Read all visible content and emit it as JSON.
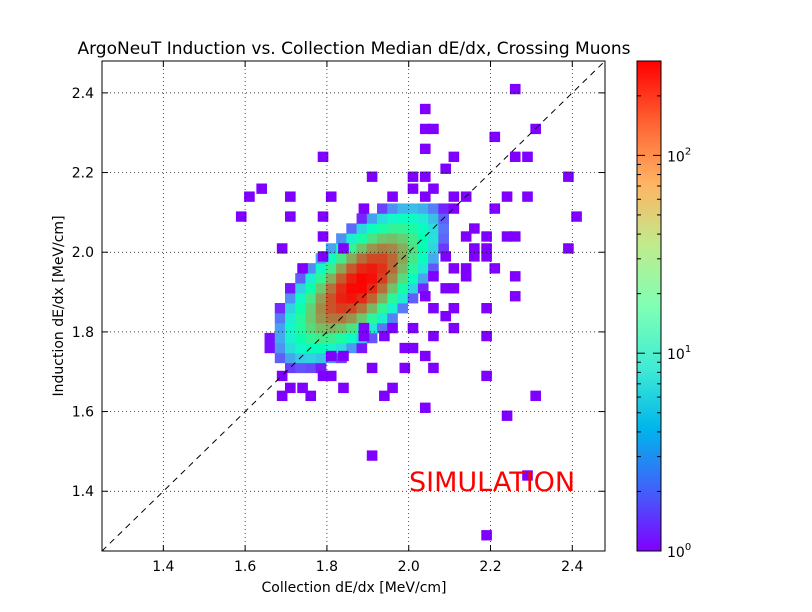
{
  "chart_data": {
    "type": "heatmap",
    "title": "ArgoNeuT Induction vs. Collection Median dE/dx, Crossing Muons",
    "xlabel": "Collection dE/dx [MeV/cm]",
    "ylabel": "Induction dE/dx [MeV/cm]",
    "annotation": "SIMULATION",
    "xlim": [
      1.25,
      2.48
    ],
    "ylim": [
      1.25,
      2.48
    ],
    "bin_width": 0.025,
    "x_ticks": [
      "1.4",
      "1.6",
      "1.8",
      "2.0",
      "2.2",
      "2.4"
    ],
    "x_tick_values": [
      1.4,
      1.6,
      1.8,
      2.0,
      2.2,
      2.4
    ],
    "y_ticks": [
      "1.4",
      "1.6",
      "1.8",
      "2.0",
      "2.2",
      "2.4"
    ],
    "y_tick_values": [
      1.4,
      1.6,
      1.8,
      2.0,
      2.2,
      2.4
    ],
    "grid": true,
    "diagonal_reference_line": "y = x (dashed)",
    "color_scale": "log, rainbow",
    "colorbar": {
      "min": 1,
      "max": 300,
      "ticks": [
        {
          "value": 1,
          "base": "10",
          "exp": "0"
        },
        {
          "value": 10,
          "base": "10",
          "exp": "1"
        },
        {
          "value": 100,
          "base": "10",
          "exp": "2"
        }
      ]
    },
    "sparse_points": [
      [
        2.26,
        2.41
      ],
      [
        2.04,
        2.36
      ],
      [
        2.04,
        2.31
      ],
      [
        2.06,
        2.31
      ],
      [
        2.31,
        2.31
      ],
      [
        2.21,
        2.29
      ],
      [
        2.04,
        2.26
      ],
      [
        1.79,
        2.24
      ],
      [
        2.11,
        2.24
      ],
      [
        2.26,
        2.24
      ],
      [
        2.29,
        2.24
      ],
      [
        2.09,
        2.21
      ],
      [
        2.39,
        2.19
      ],
      [
        1.91,
        2.19
      ],
      [
        1.64,
        2.16
      ],
      [
        1.61,
        2.14
      ],
      [
        1.71,
        2.14
      ],
      [
        1.81,
        2.14
      ],
      [
        2.29,
        2.14
      ],
      [
        1.89,
        2.11
      ],
      [
        1.59,
        2.09
      ],
      [
        1.71,
        2.09
      ],
      [
        1.79,
        2.09
      ],
      [
        2.41,
        2.09
      ],
      [
        1.79,
        2.04
      ],
      [
        2.24,
        2.04
      ],
      [
        2.26,
        2.04
      ],
      [
        1.69,
        2.01
      ],
      [
        2.39,
        2.01
      ],
      [
        2.16,
        1.99
      ],
      [
        2.19,
        1.99
      ],
      [
        2.21,
        1.96
      ],
      [
        2.26,
        1.94
      ],
      [
        2.26,
        1.89
      ],
      [
        2.11,
        1.86
      ],
      [
        2.19,
        1.86
      ],
      [
        2.11,
        1.81
      ],
      [
        2.06,
        1.79
      ],
      [
        2.19,
        1.79
      ],
      [
        2.04,
        1.74
      ],
      [
        1.99,
        1.71
      ],
      [
        2.06,
        1.71
      ],
      [
        1.91,
        1.71
      ],
      [
        2.19,
        1.69
      ],
      [
        1.69,
        1.69
      ],
      [
        1.84,
        1.66
      ],
      [
        1.96,
        1.66
      ],
      [
        1.69,
        1.64
      ],
      [
        1.76,
        1.64
      ],
      [
        1.94,
        1.64
      ],
      [
        2.31,
        1.64
      ],
      [
        2.04,
        1.61
      ],
      [
        2.24,
        1.59
      ],
      [
        1.91,
        1.49
      ],
      [
        2.29,
        1.44
      ],
      [
        2.19,
        1.29
      ],
      [
        2.01,
        2.19
      ],
      [
        2.04,
        2.19
      ],
      [
        2.06,
        2.16
      ],
      [
        2.01,
        2.16
      ],
      [
        1.96,
        2.14
      ],
      [
        2.04,
        2.14
      ],
      [
        2.11,
        2.14
      ],
      [
        2.14,
        2.14
      ],
      [
        2.24,
        2.14
      ],
      [
        2.11,
        2.11
      ],
      [
        2.21,
        2.11
      ],
      [
        2.16,
        2.06
      ],
      [
        2.14,
        2.04
      ],
      [
        2.19,
        2.04
      ],
      [
        2.16,
        2.01
      ],
      [
        2.19,
        2.01
      ],
      [
        2.09,
        1.99
      ],
      [
        2.11,
        1.96
      ],
      [
        2.14,
        1.96
      ],
      [
        2.06,
        1.94
      ],
      [
        2.09,
        1.91
      ],
      [
        2.11,
        1.91
      ],
      [
        2.04,
        1.89
      ],
      [
        2.06,
        1.86
      ],
      [
        1.96,
        1.81
      ],
      [
        2.01,
        1.81
      ],
      [
        1.89,
        1.79
      ],
      [
        1.86,
        1.76
      ],
      [
        1.99,
        1.76
      ],
      [
        1.81,
        1.74
      ],
      [
        1.84,
        1.74
      ],
      [
        1.76,
        1.71
      ],
      [
        1.79,
        1.69
      ],
      [
        1.81,
        1.69
      ],
      [
        1.89,
        1.81
      ],
      [
        1.91,
        1.81
      ],
      [
        1.94,
        1.79
      ],
      [
        2.01,
        1.76
      ],
      [
        1.71,
        1.66
      ],
      [
        1.74,
        1.66
      ],
      [
        1.96,
        2.11
      ],
      [
        1.86,
        2.06
      ],
      [
        1.84,
        2.01
      ],
      [
        1.81,
        2.01
      ],
      [
        1.76,
        1.96
      ],
      [
        1.74,
        1.96
      ],
      [
        1.79,
        1.99
      ],
      [
        2.14,
        1.94
      ],
      [
        2.09,
        1.84
      ]
    ],
    "core_distribution": {
      "description": "Dense correlated cluster centered near (1.88, 1.92) along y = x; peak bin counts ~300 (red), falling off to ~1 (violet) at the edges",
      "center": [
        1.88,
        1.92
      ],
      "peak_count": 300
    }
  }
}
